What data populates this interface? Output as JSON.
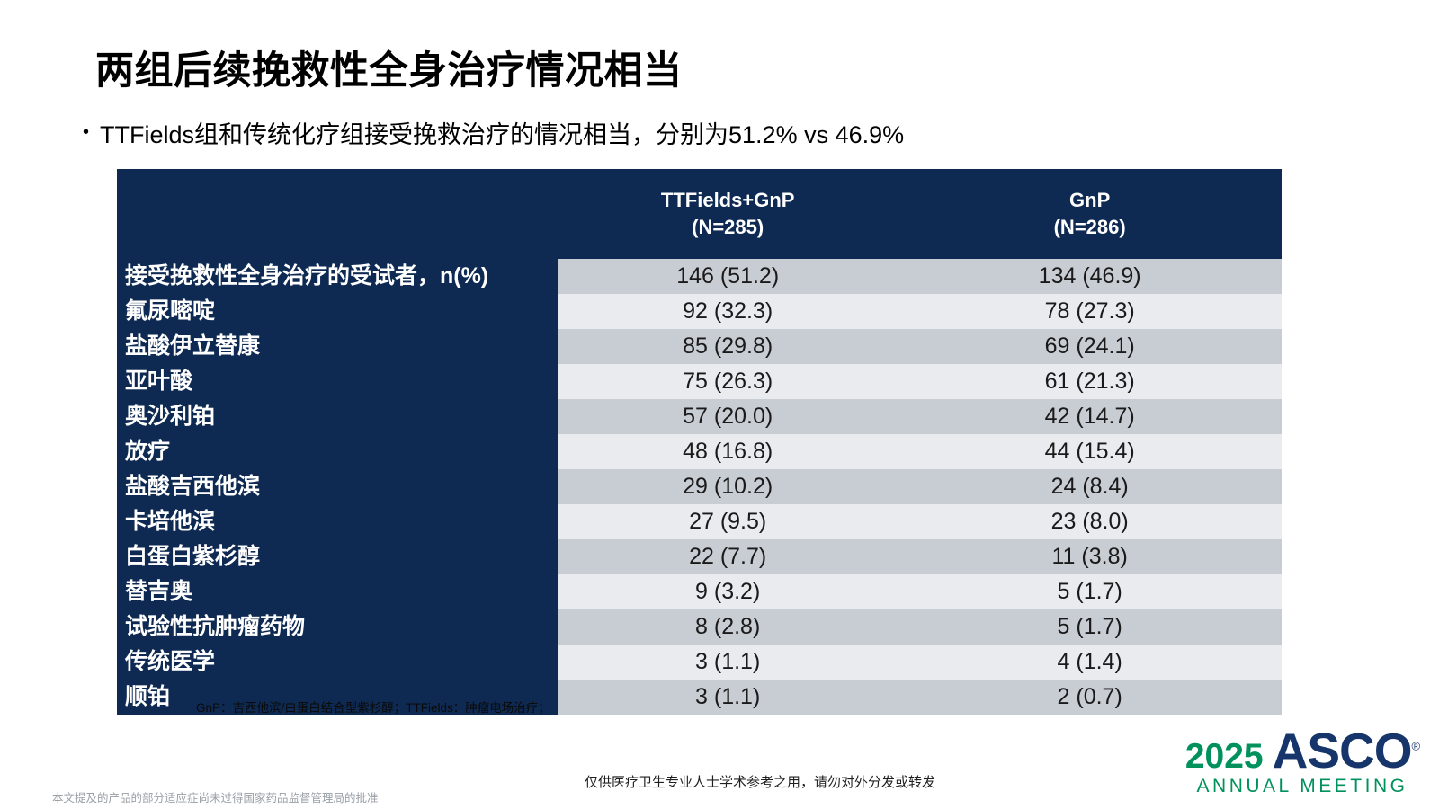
{
  "slide": {
    "title": "两组后续挽救性全身治疗情况相当",
    "bullet_dot": "•",
    "bullet": "TTFields组和传统化疗组接受挽救治疗的情况相当，分别为51.2% vs 46.9%"
  },
  "table": {
    "columns": [
      {
        "line1": "TTFields+GnP",
        "line2": "(N=285)"
      },
      {
        "line1": "GnP",
        "line2": "(N=286)"
      }
    ],
    "rows": [
      {
        "label": "接受挽救性全身治疗的受试者，n(%)",
        "ttfields_gnp": "146 (51.2)",
        "gnp": "134 (46.9)"
      },
      {
        "label": "氟尿嘧啶",
        "ttfields_gnp": "92 (32.3)",
        "gnp": "78 (27.3)"
      },
      {
        "label": "盐酸伊立替康",
        "ttfields_gnp": "85 (29.8)",
        "gnp": "69 (24.1)"
      },
      {
        "label": "亚叶酸",
        "ttfields_gnp": "75 (26.3)",
        "gnp": "61 (21.3)"
      },
      {
        "label": "奥沙利铂",
        "ttfields_gnp": "57 (20.0)",
        "gnp": "42 (14.7)"
      },
      {
        "label": "放疗",
        "ttfields_gnp": "48 (16.8)",
        "gnp": "44 (15.4)"
      },
      {
        "label": "盐酸吉西他滨",
        "ttfields_gnp": "29 (10.2)",
        "gnp": "24 (8.4)"
      },
      {
        "label": "卡培他滨",
        "ttfields_gnp": "27 (9.5)",
        "gnp": "23 (8.0)"
      },
      {
        "label": "白蛋白紫杉醇",
        "ttfields_gnp": "22 (7.7)",
        "gnp": "11 (3.8)"
      },
      {
        "label": "替吉奥",
        "ttfields_gnp": "9 (3.2)",
        "gnp": "5 (1.7)"
      },
      {
        "label": "试验性抗肿瘤药物",
        "ttfields_gnp": "8 (2.8)",
        "gnp": "5 (1.7)"
      },
      {
        "label": "传统医学",
        "ttfields_gnp": "3 (1.1)",
        "gnp": "4 (1.4)"
      },
      {
        "label": "顺铂",
        "ttfields_gnp": "3 (1.1)",
        "gnp": "2 (0.7)"
      }
    ],
    "footnote": "GnP：吉西他滨/白蛋白结合型紫杉醇；TTFields：肿瘤电场治疗；"
  },
  "footer": {
    "left_disclaimer": "本文提及的产品的部分适应症尚未过得国家药品监督管理局的批准",
    "center_disclaimer": "仅供医疗卫生专业人士学术参考之用，请勿对外分发或转发",
    "logo": {
      "year": "2025",
      "org": "ASCO",
      "reg": "®",
      "sub": "ANNUAL MEETING"
    }
  },
  "colors": {
    "table_navy": "#0e2a52",
    "row_dark": "#c8ccd3",
    "row_light": "#e9ebee",
    "asco_green": "#00915c",
    "asco_navy": "#16356b"
  }
}
